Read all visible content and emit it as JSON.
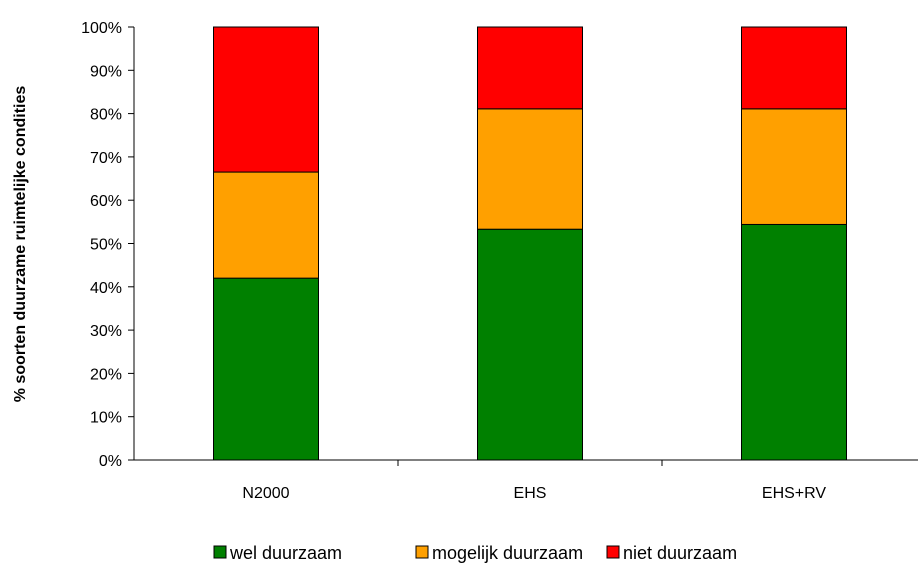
{
  "chart_data": {
    "type": "bar",
    "stacked": true,
    "percent_stacked": true,
    "title": "",
    "xlabel": "",
    "ylabel": "% soorten duurzame ruimtelijke condities",
    "ylim": [
      0,
      100
    ],
    "ytick_values": [
      0,
      10,
      20,
      30,
      40,
      50,
      60,
      70,
      80,
      90,
      100
    ],
    "ytick_labels": [
      "0%",
      "10%",
      "20%",
      "30%",
      "40%",
      "50%",
      "60%",
      "70%",
      "80%",
      "90%",
      "100%"
    ],
    "categories": [
      "N2000",
      "EHS",
      "EHS+RV"
    ],
    "series": [
      {
        "name": "wel duurzaam",
        "color": "#008000",
        "values": [
          42,
          53.3,
          54.4
        ]
      },
      {
        "name": "mogelijk duurzaam",
        "color": "#FFA000",
        "values": [
          24.5,
          27.8,
          26.7
        ]
      },
      {
        "name": "niet duurzaam",
        "color": "#FF0000",
        "values": [
          33.5,
          18.9,
          18.9
        ]
      }
    ],
    "grid": false,
    "legend_position": "bottom"
  }
}
